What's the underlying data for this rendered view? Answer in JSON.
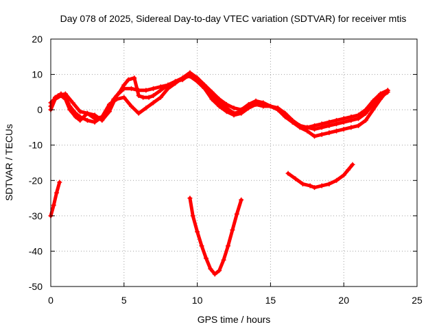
{
  "chart_data": {
    "type": "scatter",
    "title": "Day 078 of 2025, Sidereal Day-to-day VTEC variation (SDTVAR) for receiver mtis",
    "xlabel": "GPS time / hours",
    "ylabel": "SDTVAR / TECUs",
    "xlim": [
      0,
      25
    ],
    "ylim": [
      -50,
      20
    ],
    "xticks": [
      0,
      5,
      10,
      15,
      20,
      25
    ],
    "yticks": [
      -50,
      -40,
      -30,
      -20,
      -10,
      0,
      10,
      20
    ],
    "grid": true,
    "marker": "+",
    "colors": {
      "series": "#ff0000",
      "grid": "#a0a0a0",
      "axis": "#000000"
    },
    "series": [
      {
        "name": "main-a",
        "x": [
          0,
          0.3,
          0.7,
          1.0,
          1.3,
          1.7,
          2.0,
          2.5,
          3.0,
          3.5,
          4.0,
          4.3,
          4.7,
          5.0,
          5.3,
          5.7,
          6.0,
          6.3,
          6.7,
          7.0,
          7.5,
          8.0,
          8.5,
          9.0,
          9.5,
          10.0,
          10.5,
          11.0,
          11.5,
          12.0,
          12.5,
          13.0,
          13.5,
          14.0,
          14.5,
          15.0,
          15.5,
          16.0,
          16.5,
          17.0,
          17.5,
          18.0,
          18.5,
          19.0,
          19.5,
          20.0,
          20.5,
          21.0,
          21.5,
          22.0,
          22.5,
          23.0
        ],
        "y": [
          1,
          3.5,
          4.5,
          3.5,
          1,
          -1,
          -2,
          -3,
          -3.5,
          -2,
          1,
          3,
          5,
          7,
          8.5,
          9,
          4,
          3.5,
          3.5,
          4,
          5.5,
          7,
          8,
          9,
          9.5,
          8,
          6,
          4,
          2,
          0.5,
          -1,
          -0.5,
          1,
          2,
          1.5,
          1,
          0.5,
          -1,
          -3,
          -4.5,
          -5,
          -5.5,
          -5,
          -4.5,
          -4,
          -3.5,
          -3,
          -2.5,
          -1,
          1.5,
          3.5,
          5
        ]
      },
      {
        "name": "main-b",
        "x": [
          0,
          0.3,
          0.7,
          1.0,
          1.3,
          1.7,
          2.0,
          2.5,
          3.0,
          3.5,
          4.0,
          4.5,
          5.0,
          5.5,
          6.0,
          6.5,
          7.0,
          7.5,
          8.0,
          8.5,
          9.0,
          9.5,
          10.0,
          10.5,
          11.0,
          11.5,
          12.0,
          12.5,
          13.0,
          13.5,
          14.0,
          14.5,
          15.0,
          15.5,
          16.0,
          16.5,
          17.0,
          17.5,
          18.0,
          18.5,
          19.0,
          19.5,
          20.0,
          20.5,
          21.0,
          21.5,
          22.0,
          22.5,
          23.0
        ],
        "y": [
          0,
          3,
          4,
          3,
          0,
          -2,
          -3,
          -1,
          -1.5,
          -3,
          -0.5,
          4,
          6,
          6,
          5.5,
          5.5,
          6,
          6.5,
          7,
          8,
          8.5,
          10,
          8.5,
          6,
          3,
          1,
          -0.5,
          -1.5,
          -1,
          0.5,
          1.5,
          1,
          1,
          0.5,
          -1.5,
          -3.5,
          -5,
          -6,
          -7.5,
          -7,
          -6.5,
          -6,
          -5.5,
          -5,
          -4.5,
          -3,
          0,
          3,
          5.5
        ]
      },
      {
        "name": "main-c",
        "x": [
          0,
          0.5,
          1.0,
          1.5,
          2.0,
          2.5,
          3.0,
          3.5,
          4.0,
          4.5,
          5.0,
          5.5,
          6.0,
          6.5,
          7.0,
          7.5,
          8.0,
          8.5,
          9.0,
          9.5,
          10.0,
          10.5,
          11.0,
          11.5,
          12.0,
          12.5,
          13.0,
          13.5,
          14.0,
          14.5,
          15.0,
          15.5,
          16.0,
          16.5,
          17.0,
          17.5,
          18.0,
          18.5,
          19.0,
          19.5,
          20.0,
          20.5,
          21.0,
          21.5,
          22.0,
          22.5,
          23.0
        ],
        "y": [
          2,
          4,
          4.5,
          2,
          -0.5,
          -1,
          -2.5,
          -2,
          1.5,
          3,
          3.5,
          1,
          -1,
          0.5,
          2,
          3.5,
          6,
          7.5,
          9,
          10.5,
          9,
          7,
          5,
          3,
          1.5,
          0.5,
          0,
          1.5,
          2.5,
          2,
          1,
          0,
          -2,
          -3.5,
          -4.5,
          -5,
          -4.5,
          -4,
          -3.5,
          -3,
          -2.5,
          -2,
          -1.5,
          0,
          2.5,
          4.5,
          5.5
        ]
      },
      {
        "name": "seg-early",
        "x": [
          0,
          0.2,
          0.4,
          0.6
        ],
        "y": [
          -30,
          -27,
          -23.5,
          -20.5
        ]
      },
      {
        "name": "seg-dip",
        "x": [
          9.5,
          9.7,
          10.0,
          10.3,
          10.6,
          10.9,
          11.2,
          11.5,
          11.8,
          12.1,
          12.4,
          12.7,
          13.0
        ],
        "y": [
          -25,
          -30,
          -34.5,
          -38.5,
          -42,
          -45,
          -46.5,
          -45.5,
          -42.5,
          -38.5,
          -34,
          -29.5,
          -25.5
        ]
      },
      {
        "name": "seg-late",
        "x": [
          16.2,
          16.7,
          17.2,
          17.7,
          18.0,
          18.5,
          19.0,
          19.5,
          20.0,
          20.3,
          20.6
        ],
        "y": [
          -18,
          -19.5,
          -21,
          -21.5,
          -22,
          -21.5,
          -21,
          -20,
          -18.5,
          -17,
          -15.5
        ]
      }
    ]
  }
}
